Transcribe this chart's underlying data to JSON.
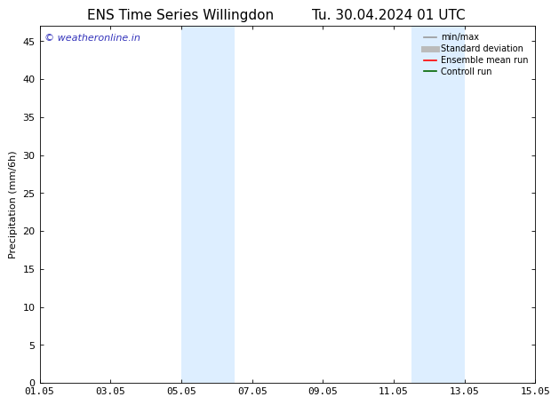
{
  "title_left": "ENS Time Series Willingdon",
  "title_right": "Tu. 30.04.2024 01 UTC",
  "ylabel": "Precipitation (mm/6h)",
  "bg_color": "#ffffff",
  "plot_bg_color": "#ffffff",
  "ylim": [
    0,
    47
  ],
  "yticks": [
    0,
    5,
    10,
    15,
    20,
    25,
    30,
    35,
    40,
    45
  ],
  "xtick_labels": [
    "01.05",
    "03.05",
    "05.05",
    "07.05",
    "09.05",
    "11.05",
    "13.05",
    "15.05"
  ],
  "xtick_positions": [
    0,
    2,
    4,
    6,
    8,
    10,
    12,
    14
  ],
  "xlim": [
    0,
    14
  ],
  "shaded_bands": [
    {
      "x_start": 4.0,
      "x_end": 5.5,
      "color": "#ddeeff"
    },
    {
      "x_start": 10.5,
      "x_end": 12.0,
      "color": "#ddeeff"
    }
  ],
  "watermark_text": "© weatheronline.in",
  "watermark_color": "#3333bb",
  "legend_items": [
    {
      "label": "min/max",
      "color": "#999999",
      "lw": 1.2,
      "linestyle": "-"
    },
    {
      "label": "Standard deviation",
      "color": "#bbbbbb",
      "lw": 5,
      "linestyle": "-"
    },
    {
      "label": "Ensemble mean run",
      "color": "#ff0000",
      "lw": 1.2,
      "linestyle": "-"
    },
    {
      "label": "Controll run",
      "color": "#006600",
      "lw": 1.2,
      "linestyle": "-"
    }
  ],
  "title_fontsize": 11,
  "axis_label_fontsize": 8,
  "tick_fontsize": 8,
  "watermark_fontsize": 8,
  "legend_fontsize": 7
}
